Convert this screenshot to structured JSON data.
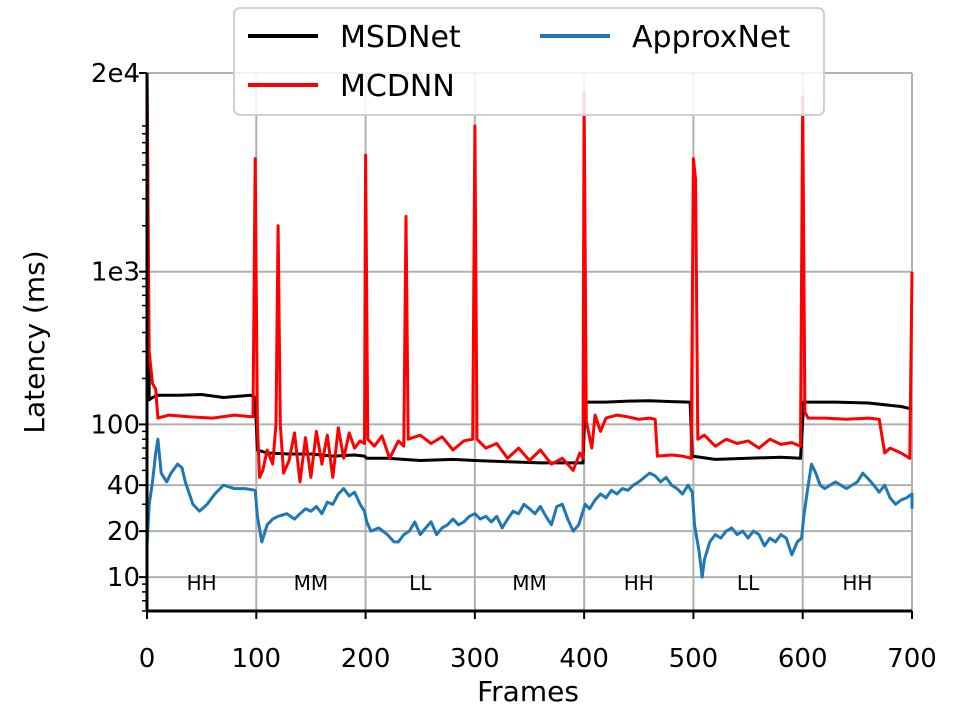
{
  "chart_data": {
    "type": "line",
    "title": "",
    "xlabel": "Frames",
    "ylabel": "Latency (ms)",
    "xlim": [
      0,
      700
    ],
    "ylim": [
      6,
      20000
    ],
    "yscale": "log",
    "x_ticks": [
      0,
      100,
      200,
      300,
      400,
      500,
      600,
      700
    ],
    "x_tick_labels": [
      "0",
      "100",
      "200",
      "300",
      "400",
      "500",
      "600",
      "700"
    ],
    "y_ticks": [
      10,
      20,
      40,
      100,
      1000,
      20000
    ],
    "y_tick_labels": [
      "10",
      "20",
      "40",
      "100",
      "1e3",
      "2e4"
    ],
    "grid": true,
    "legend_position": "top-center",
    "segments": [
      {
        "label": "HH",
        "start": 0,
        "end": 100
      },
      {
        "label": "MM",
        "start": 100,
        "end": 200
      },
      {
        "label": "LL",
        "start": 200,
        "end": 300
      },
      {
        "label": "MM",
        "start": 300,
        "end": 400
      },
      {
        "label": "HH",
        "start": 400,
        "end": 500
      },
      {
        "label": "LL",
        "start": 500,
        "end": 600
      },
      {
        "label": "HH",
        "start": 600,
        "end": 700
      }
    ],
    "series": [
      {
        "name": "MSDNet",
        "color": "#000000",
        "points": [
          [
            0,
            20000
          ],
          [
            2,
            145
          ],
          [
            5,
            150
          ],
          [
            10,
            155
          ],
          [
            30,
            155
          ],
          [
            50,
            157
          ],
          [
            70,
            150
          ],
          [
            95,
            155
          ],
          [
            99,
            150
          ],
          [
            101,
            68
          ],
          [
            110,
            65
          ],
          [
            130,
            64
          ],
          [
            150,
            64
          ],
          [
            170,
            62
          ],
          [
            190,
            63
          ],
          [
            199,
            62
          ],
          [
            201,
            60
          ],
          [
            220,
            60
          ],
          [
            250,
            58
          ],
          [
            280,
            59
          ],
          [
            300,
            58
          ],
          [
            330,
            57
          ],
          [
            360,
            56
          ],
          [
            390,
            56
          ],
          [
            399,
            56
          ],
          [
            401,
            140
          ],
          [
            420,
            140
          ],
          [
            440,
            142
          ],
          [
            460,
            143
          ],
          [
            480,
            141
          ],
          [
            497,
            140
          ],
          [
            499,
            62
          ],
          [
            520,
            59
          ],
          [
            550,
            60
          ],
          [
            580,
            61
          ],
          [
            598,
            60
          ],
          [
            601,
            140
          ],
          [
            630,
            140
          ],
          [
            660,
            138
          ],
          [
            690,
            131
          ],
          [
            700,
            126
          ]
        ]
      },
      {
        "name": "MCDNN",
        "color": "#ff0000",
        "points": [
          [
            0,
            20000
          ],
          [
            2,
            300
          ],
          [
            5,
            185
          ],
          [
            8,
            170
          ],
          [
            10,
            110
          ],
          [
            20,
            115
          ],
          [
            40,
            112
          ],
          [
            60,
            110
          ],
          [
            80,
            115
          ],
          [
            97,
            112
          ],
          [
            99,
            5500
          ],
          [
            101,
            100
          ],
          [
            103,
            45
          ],
          [
            106,
            50
          ],
          [
            110,
            68
          ],
          [
            115,
            55
          ],
          [
            118,
            100
          ],
          [
            120,
            2000
          ],
          [
            122,
            100
          ],
          [
            125,
            48
          ],
          [
            130,
            58
          ],
          [
            135,
            88
          ],
          [
            140,
            42
          ],
          [
            145,
            82
          ],
          [
            150,
            45
          ],
          [
            155,
            90
          ],
          [
            160,
            55
          ],
          [
            165,
            85
          ],
          [
            170,
            45
          ],
          [
            175,
            95
          ],
          [
            180,
            60
          ],
          [
            185,
            88
          ],
          [
            190,
            70
          ],
          [
            195,
            78
          ],
          [
            199,
            75
          ],
          [
            200,
            5800
          ],
          [
            202,
            80
          ],
          [
            208,
            72
          ],
          [
            215,
            84
          ],
          [
            222,
            60
          ],
          [
            230,
            78
          ],
          [
            235,
            72
          ],
          [
            237,
            2300
          ],
          [
            239,
            80
          ],
          [
            250,
            85
          ],
          [
            260,
            75
          ],
          [
            270,
            83
          ],
          [
            280,
            68
          ],
          [
            290,
            78
          ],
          [
            298,
            80
          ],
          [
            300,
            9000
          ],
          [
            302,
            80
          ],
          [
            310,
            70
          ],
          [
            320,
            75
          ],
          [
            330,
            60
          ],
          [
            340,
            70
          ],
          [
            350,
            58
          ],
          [
            360,
            68
          ],
          [
            370,
            55
          ],
          [
            380,
            60
          ],
          [
            390,
            50
          ],
          [
            396,
            65
          ],
          [
            399,
            60
          ],
          [
            400,
            15000
          ],
          [
            402,
            105
          ],
          [
            407,
            70
          ],
          [
            410,
            115
          ],
          [
            415,
            90
          ],
          [
            420,
            110
          ],
          [
            430,
            115
          ],
          [
            440,
            112
          ],
          [
            450,
            108
          ],
          [
            460,
            110
          ],
          [
            465,
            108
          ],
          [
            467,
            62
          ],
          [
            480,
            63
          ],
          [
            490,
            62
          ],
          [
            498,
            60
          ],
          [
            500,
            5500
          ],
          [
            502,
            4000
          ],
          [
            504,
            80
          ],
          [
            510,
            85
          ],
          [
            520,
            72
          ],
          [
            530,
            80
          ],
          [
            540,
            75
          ],
          [
            550,
            78
          ],
          [
            560,
            70
          ],
          [
            570,
            80
          ],
          [
            580,
            74
          ],
          [
            590,
            76
          ],
          [
            598,
            72
          ],
          [
            600,
            14000
          ],
          [
            602,
            120
          ],
          [
            605,
            110
          ],
          [
            620,
            110
          ],
          [
            640,
            108
          ],
          [
            660,
            110
          ],
          [
            670,
            108
          ],
          [
            675,
            65
          ],
          [
            680,
            70
          ],
          [
            690,
            65
          ],
          [
            698,
            60
          ],
          [
            700,
            1000
          ]
        ]
      },
      {
        "name": "ApproxNet",
        "color": "#1f77b4",
        "points": [
          [
            0,
            16
          ],
          [
            2,
            30
          ],
          [
            5,
            42
          ],
          [
            8,
            65
          ],
          [
            10,
            80
          ],
          [
            13,
            48
          ],
          [
            18,
            42
          ],
          [
            22,
            48
          ],
          [
            28,
            55
          ],
          [
            32,
            52
          ],
          [
            35,
            42
          ],
          [
            42,
            30
          ],
          [
            48,
            27
          ],
          [
            55,
            30
          ],
          [
            62,
            35
          ],
          [
            70,
            40
          ],
          [
            80,
            38
          ],
          [
            90,
            38
          ],
          [
            99,
            37
          ],
          [
            101,
            25
          ],
          [
            105,
            17
          ],
          [
            110,
            22
          ],
          [
            115,
            24
          ],
          [
            120,
            25
          ],
          [
            128,
            26
          ],
          [
            135,
            24
          ],
          [
            140,
            26
          ],
          [
            145,
            28
          ],
          [
            150,
            27
          ],
          [
            155,
            29
          ],
          [
            160,
            26
          ],
          [
            165,
            31
          ],
          [
            170,
            30
          ],
          [
            175,
            35
          ],
          [
            180,
            38
          ],
          [
            185,
            34
          ],
          [
            190,
            36
          ],
          [
            195,
            30
          ],
          [
            199,
            27
          ],
          [
            201,
            23
          ],
          [
            205,
            20
          ],
          [
            212,
            21
          ],
          [
            220,
            19
          ],
          [
            226,
            17
          ],
          [
            230,
            17
          ],
          [
            235,
            19
          ],
          [
            240,
            20
          ],
          [
            245,
            23
          ],
          [
            250,
            19
          ],
          [
            255,
            21
          ],
          [
            260,
            23
          ],
          [
            265,
            19
          ],
          [
            270,
            21
          ],
          [
            275,
            22
          ],
          [
            280,
            24
          ],
          [
            285,
            22
          ],
          [
            290,
            23
          ],
          [
            295,
            25
          ],
          [
            300,
            26
          ],
          [
            305,
            24
          ],
          [
            310,
            25
          ],
          [
            315,
            23
          ],
          [
            320,
            25
          ],
          [
            325,
            21
          ],
          [
            330,
            24
          ],
          [
            335,
            27
          ],
          [
            340,
            26
          ],
          [
            345,
            30
          ],
          [
            350,
            28
          ],
          [
            355,
            26
          ],
          [
            360,
            29
          ],
          [
            365,
            25
          ],
          [
            370,
            22
          ],
          [
            375,
            29
          ],
          [
            380,
            30
          ],
          [
            385,
            24
          ],
          [
            390,
            20
          ],
          [
            395,
            22
          ],
          [
            399,
            27
          ],
          [
            401,
            30
          ],
          [
            405,
            28
          ],
          [
            410,
            32
          ],
          [
            415,
            35
          ],
          [
            420,
            33
          ],
          [
            425,
            37
          ],
          [
            430,
            35
          ],
          [
            435,
            38
          ],
          [
            440,
            37
          ],
          [
            445,
            40
          ],
          [
            450,
            42
          ],
          [
            455,
            45
          ],
          [
            460,
            48
          ],
          [
            465,
            46
          ],
          [
            470,
            42
          ],
          [
            475,
            45
          ],
          [
            480,
            40
          ],
          [
            485,
            38
          ],
          [
            490,
            35
          ],
          [
            495,
            40
          ],
          [
            499,
            36
          ],
          [
            501,
            22
          ],
          [
            505,
            15
          ],
          [
            508,
            10
          ],
          [
            510,
            13
          ],
          [
            515,
            17
          ],
          [
            520,
            19
          ],
          [
            525,
            18
          ],
          [
            530,
            20
          ],
          [
            535,
            21
          ],
          [
            540,
            19
          ],
          [
            545,
            20
          ],
          [
            550,
            18
          ],
          [
            555,
            20
          ],
          [
            560,
            19
          ],
          [
            565,
            16
          ],
          [
            570,
            18
          ],
          [
            575,
            17
          ],
          [
            580,
            19
          ],
          [
            585,
            18
          ],
          [
            590,
            14
          ],
          [
            595,
            17
          ],
          [
            599,
            18
          ],
          [
            601,
            25
          ],
          [
            605,
            40
          ],
          [
            608,
            55
          ],
          [
            612,
            48
          ],
          [
            616,
            40
          ],
          [
            620,
            38
          ],
          [
            630,
            42
          ],
          [
            640,
            38
          ],
          [
            650,
            42
          ],
          [
            655,
            48
          ],
          [
            660,
            44
          ],
          [
            665,
            40
          ],
          [
            670,
            36
          ],
          [
            675,
            40
          ],
          [
            680,
            33
          ],
          [
            685,
            30
          ],
          [
            690,
            32
          ],
          [
            695,
            33
          ],
          [
            700,
            35
          ],
          [
            700,
            28
          ]
        ]
      }
    ]
  }
}
